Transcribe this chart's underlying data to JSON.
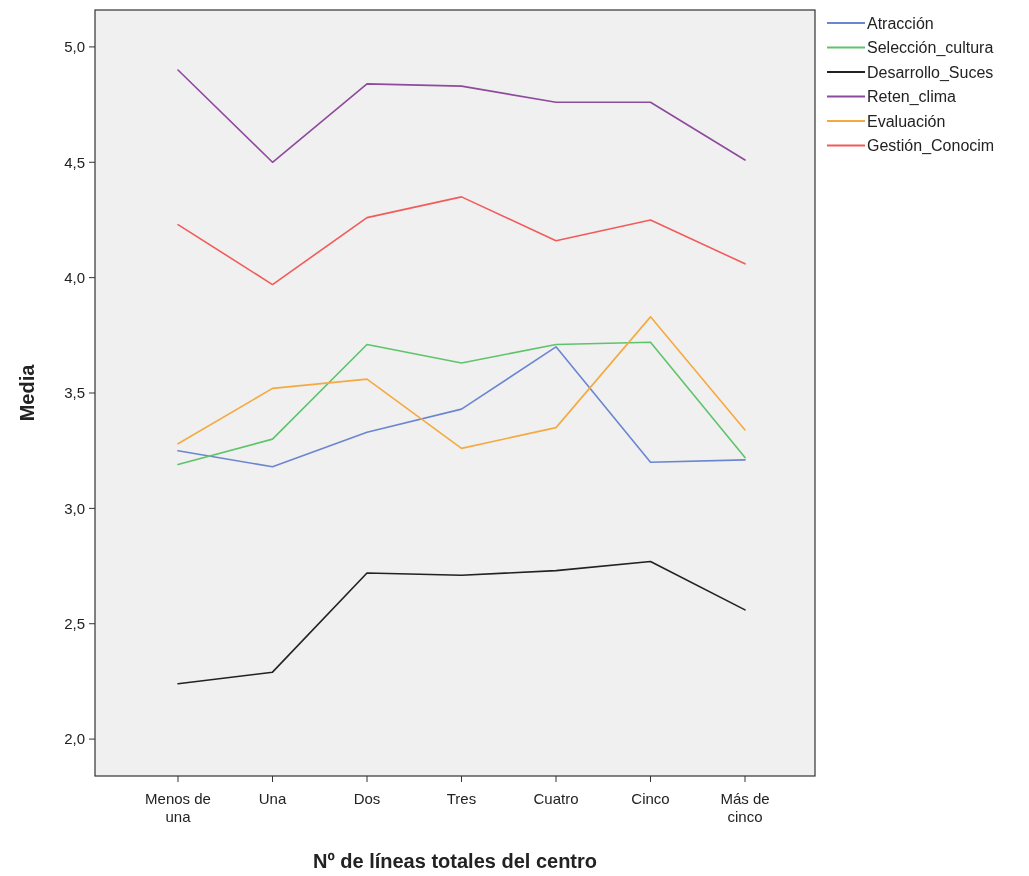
{
  "chart_data": {
    "type": "line",
    "xlabel": "Nº de líneas totales del centro",
    "ylabel": "Media",
    "categories": [
      "Menos de una",
      "Una",
      "Dos",
      "Tres",
      "Cuatro",
      "Cinco",
      "Más de cinco"
    ],
    "series": [
      {
        "name": "Atracción",
        "color": "#6b86d0",
        "values": [
          3.25,
          3.18,
          3.33,
          3.43,
          3.7,
          3.2,
          3.21
        ]
      },
      {
        "name": "Selección_cultura",
        "color": "#5ec46a",
        "values": [
          3.19,
          3.3,
          3.71,
          3.63,
          3.71,
          3.72,
          3.22
        ]
      },
      {
        "name": "Desarrollo_Suces",
        "color": "#222222",
        "values": [
          2.24,
          2.29,
          2.72,
          2.71,
          2.73,
          2.77,
          2.56
        ]
      },
      {
        "name": "Reten_clima",
        "color": "#8e4a9c",
        "values": [
          4.9,
          4.5,
          4.84,
          4.83,
          4.76,
          4.76,
          4.51
        ]
      },
      {
        "name": "Evaluación",
        "color": "#f5a940",
        "values": [
          3.28,
          3.52,
          3.56,
          3.26,
          3.35,
          3.83,
          3.34
        ]
      },
      {
        "name": "Gestión_Conocim",
        "color": "#f25b5b",
        "values": [
          4.23,
          3.97,
          4.26,
          4.35,
          4.16,
          4.25,
          4.06
        ]
      }
    ],
    "ylim": [
      1.84,
      5.16
    ],
    "yticks": [
      {
        "value": 2,
        "label": "2,0"
      },
      {
        "value": 2.5,
        "label": "2,5"
      },
      {
        "value": 3,
        "label": "3,0"
      },
      {
        "value": 3.5,
        "label": "3,5"
      },
      {
        "value": 4,
        "label": "4,0"
      },
      {
        "value": 4.5,
        "label": "4,5"
      },
      {
        "value": 5,
        "label": "5,0"
      }
    ],
    "legend": "right",
    "grid": false,
    "marker": "none",
    "line_style": "solid"
  }
}
